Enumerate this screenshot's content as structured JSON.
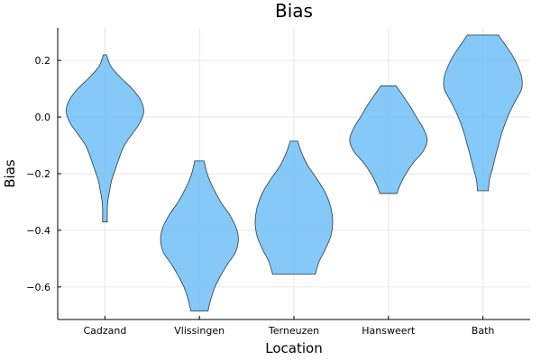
{
  "chart_data": {
    "type": "violin",
    "title": "Bias",
    "xlabel": "Location",
    "ylabel": "Bias",
    "categories": [
      "Cadzand",
      "Vlissingen",
      "Terneuzen",
      "Hansweert",
      "Bath"
    ],
    "ylim": [
      -0.715,
      0.315
    ],
    "yticks": [
      0.2,
      0.0,
      -0.2,
      -0.4,
      -0.6
    ],
    "ytick_labels": [
      "0.2",
      "0.0",
      "−0.2",
      "−0.4",
      "−0.6"
    ],
    "grid": true,
    "legend": "none",
    "color": "#6ec0f7",
    "series": [
      {
        "category": "Cadzand",
        "min": -0.37,
        "max": 0.22,
        "profile": [
          [
            0.22,
            0.04
          ],
          [
            0.18,
            0.15
          ],
          [
            0.14,
            0.4
          ],
          [
            0.1,
            0.7
          ],
          [
            0.06,
            0.92
          ],
          [
            0.02,
            1.0
          ],
          [
            -0.02,
            0.9
          ],
          [
            -0.06,
            0.7
          ],
          [
            -0.1,
            0.5
          ],
          [
            -0.14,
            0.38
          ],
          [
            -0.18,
            0.28
          ],
          [
            -0.22,
            0.18
          ],
          [
            -0.26,
            0.12
          ],
          [
            -0.3,
            0.07
          ],
          [
            -0.33,
            0.06
          ],
          [
            -0.37,
            0.06
          ]
        ]
      },
      {
        "category": "Vlissingen",
        "min": -0.685,
        "max": -0.155,
        "profile": [
          [
            -0.155,
            0.12
          ],
          [
            -0.2,
            0.2
          ],
          [
            -0.25,
            0.35
          ],
          [
            -0.3,
            0.55
          ],
          [
            -0.35,
            0.8
          ],
          [
            -0.4,
            0.97
          ],
          [
            -0.44,
            1.0
          ],
          [
            -0.48,
            0.92
          ],
          [
            -0.52,
            0.72
          ],
          [
            -0.56,
            0.55
          ],
          [
            -0.6,
            0.4
          ],
          [
            -0.64,
            0.3
          ],
          [
            -0.685,
            0.22
          ]
        ]
      },
      {
        "category": "Terneuzen",
        "min": -0.555,
        "max": -0.085,
        "profile": [
          [
            -0.085,
            0.1
          ],
          [
            -0.12,
            0.18
          ],
          [
            -0.17,
            0.35
          ],
          [
            -0.22,
            0.6
          ],
          [
            -0.27,
            0.82
          ],
          [
            -0.32,
            0.95
          ],
          [
            -0.37,
            1.0
          ],
          [
            -0.42,
            0.95
          ],
          [
            -0.47,
            0.8
          ],
          [
            -0.51,
            0.65
          ],
          [
            -0.555,
            0.55
          ]
        ]
      },
      {
        "category": "Hansweert",
        "min": -0.27,
        "max": 0.11,
        "profile": [
          [
            0.11,
            0.2
          ],
          [
            0.08,
            0.35
          ],
          [
            0.04,
            0.55
          ],
          [
            0.0,
            0.72
          ],
          [
            -0.04,
            0.9
          ],
          [
            -0.08,
            1.0
          ],
          [
            -0.12,
            0.9
          ],
          [
            -0.16,
            0.65
          ],
          [
            -0.2,
            0.45
          ],
          [
            -0.24,
            0.3
          ],
          [
            -0.27,
            0.22
          ]
        ]
      },
      {
        "category": "Bath",
        "min": -0.26,
        "max": 0.29,
        "profile": [
          [
            0.29,
            0.4
          ],
          [
            0.26,
            0.55
          ],
          [
            0.22,
            0.75
          ],
          [
            0.18,
            0.9
          ],
          [
            0.14,
            1.0
          ],
          [
            0.1,
            1.0
          ],
          [
            0.06,
            0.85
          ],
          [
            0.02,
            0.7
          ],
          [
            -0.02,
            0.58
          ],
          [
            -0.06,
            0.48
          ],
          [
            -0.1,
            0.4
          ],
          [
            -0.14,
            0.32
          ],
          [
            -0.18,
            0.25
          ],
          [
            -0.22,
            0.17
          ],
          [
            -0.26,
            0.14
          ]
        ]
      }
    ]
  }
}
